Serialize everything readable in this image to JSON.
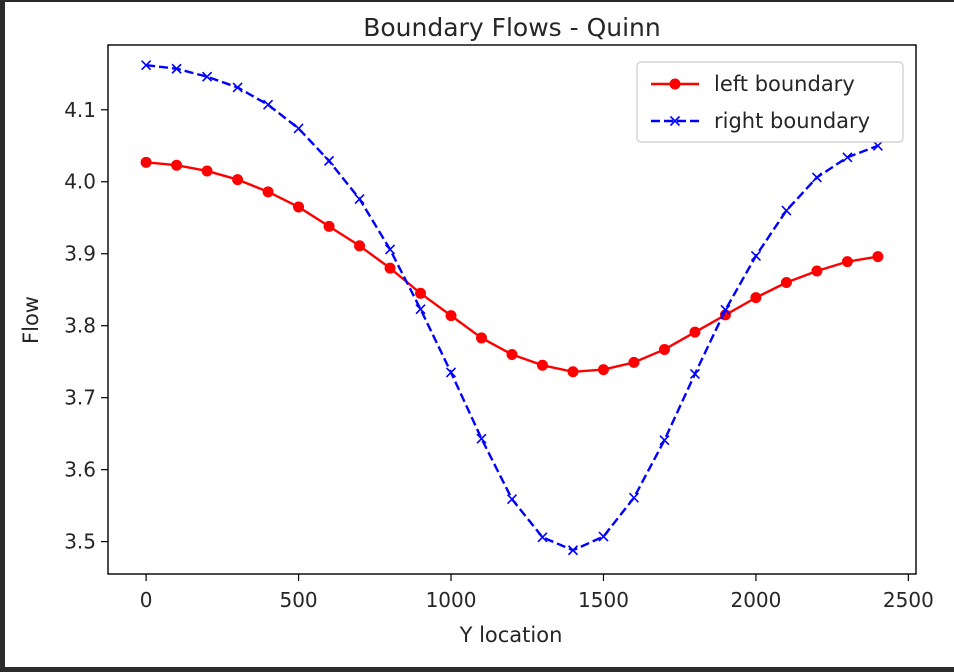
{
  "chart_data": {
    "type": "line",
    "title": "Boundary Flows - Quinn",
    "xlabel": "Y location",
    "ylabel": "Flow",
    "xlim": [
      -125,
      2525
    ],
    "ylim": [
      3.455,
      4.19
    ],
    "xticks": [
      0,
      500,
      1000,
      1500,
      2000,
      2500
    ],
    "xtick_labels": [
      "0",
      "500",
      "1000",
      "1500",
      "2000",
      "2500"
    ],
    "yticks": [
      3.5,
      3.6,
      3.7,
      3.8,
      3.9,
      4.0,
      4.1
    ],
    "ytick_labels": [
      "3.5",
      "3.6",
      "3.7",
      "3.8",
      "3.9",
      "4.0",
      "4.1"
    ],
    "grid": false,
    "legend_position": "top-right",
    "x": [
      0,
      100,
      200,
      300,
      400,
      500,
      600,
      700,
      800,
      900,
      1000,
      1100,
      1200,
      1300,
      1400,
      1500,
      1600,
      1700,
      1800,
      1900,
      2000,
      2100,
      2200,
      2300,
      2400
    ],
    "series": [
      {
        "name": "left boundary",
        "color": "#ff0000",
        "line_style": "solid",
        "marker": "circle",
        "values": [
          4.027,
          4.023,
          4.015,
          4.003,
          3.986,
          3.965,
          3.938,
          3.911,
          3.88,
          3.845,
          3.814,
          3.783,
          3.76,
          3.745,
          3.736,
          3.739,
          3.749,
          3.767,
          3.791,
          3.815,
          3.839,
          3.86,
          3.876,
          3.889,
          3.896
        ]
      },
      {
        "name": "right boundary",
        "color": "#0000ff",
        "line_style": "dashed",
        "marker": "x",
        "values": [
          4.162,
          4.157,
          4.146,
          4.131,
          4.107,
          4.074,
          4.029,
          3.976,
          3.906,
          3.823,
          3.735,
          3.643,
          3.559,
          3.506,
          3.488,
          3.507,
          3.561,
          3.641,
          3.733,
          3.822,
          3.897,
          3.96,
          4.006,
          4.034,
          4.05
        ]
      }
    ]
  }
}
